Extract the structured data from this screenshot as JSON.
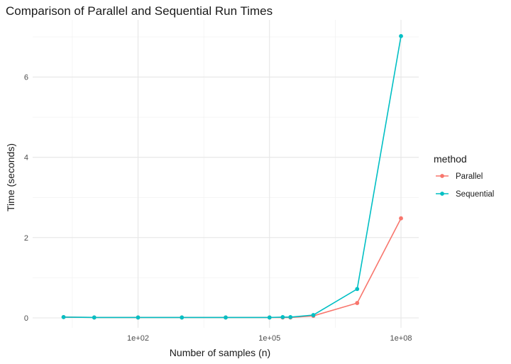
{
  "chart_data": {
    "type": "line",
    "title": "Comparison of Parallel and Sequential Run Times",
    "xlabel": "Number of samples (n)",
    "ylabel": "Time (seconds)",
    "x_scale": "log10",
    "xlim": [
      1,
      100000000
    ],
    "ylim": [
      0,
      7
    ],
    "x_ticks": [
      {
        "value": 100,
        "label": "1e+02"
      },
      {
        "value": 100000,
        "label": "1e+05"
      },
      {
        "value": 100000000,
        "label": "1e+08"
      }
    ],
    "y_ticks": [
      {
        "value": 0,
        "label": "0"
      },
      {
        "value": 2,
        "label": "2"
      },
      {
        "value": 4,
        "label": "4"
      },
      {
        "value": 6,
        "label": "6"
      }
    ],
    "grid": true,
    "legend": {
      "title": "method",
      "position": "right"
    },
    "x": [
      2,
      10,
      100,
      1000,
      10000,
      100000,
      200000,
      300000,
      1000000,
      10000000,
      100000000
    ],
    "series": [
      {
        "name": "Parallel",
        "color": "#f8766d",
        "values": [
          0.02,
          0.01,
          0.01,
          0.01,
          0.01,
          0.01,
          0.01,
          0.01,
          0.05,
          0.37,
          2.48
        ]
      },
      {
        "name": "Sequential",
        "color": "#00bfc4",
        "values": [
          0.02,
          0.01,
          0.01,
          0.01,
          0.01,
          0.01,
          0.02,
          0.02,
          0.07,
          0.72,
          7.02
        ]
      }
    ]
  }
}
